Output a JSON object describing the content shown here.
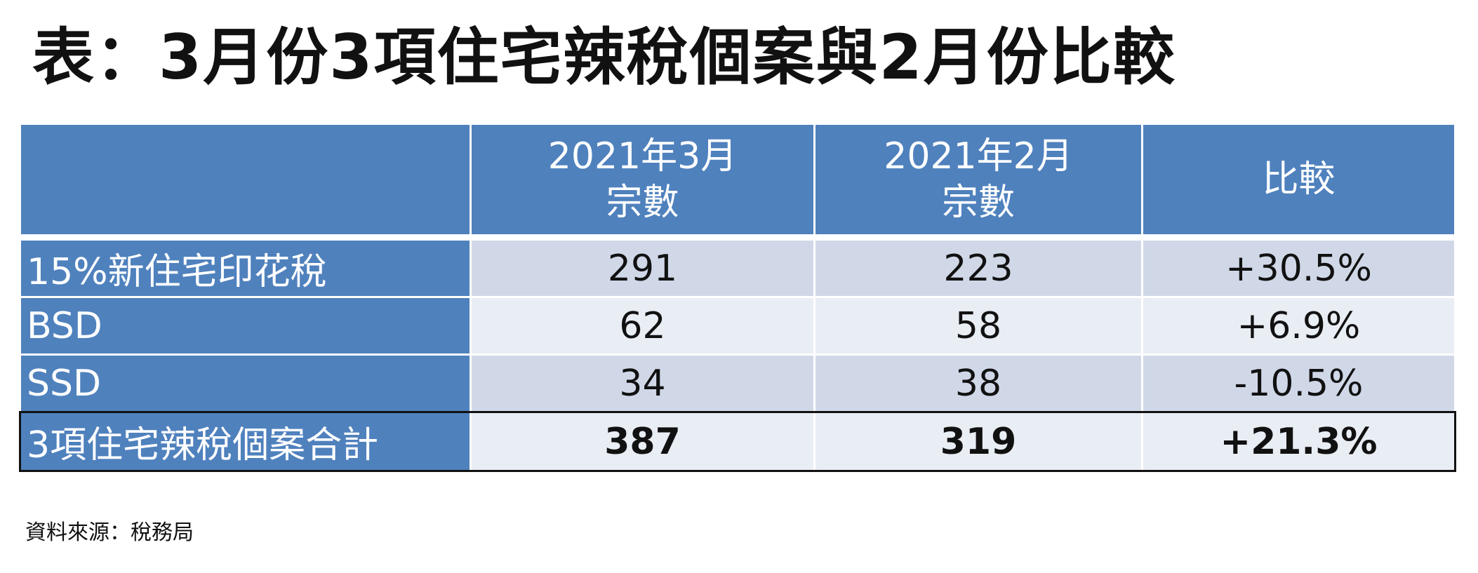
{
  "title": "表：3月份3項住宅辣稅個案與2月份比較",
  "table": {
    "headers": [
      {
        "line1": "",
        "line2": ""
      },
      {
        "line1": "2021年3月",
        "line2": "宗數"
      },
      {
        "line1": "2021年2月",
        "line2": "宗數"
      },
      {
        "line1": "比較",
        "line2": ""
      }
    ],
    "rows": [
      {
        "label": "15%新住宅印花稅",
        "mar": "291",
        "feb": "223",
        "change": "+30.5%"
      },
      {
        "label": "BSD",
        "mar": "62",
        "feb": "58",
        "change": "+6.9%"
      },
      {
        "label": "SSD",
        "mar": "34",
        "feb": "38",
        "change": "-10.5%"
      }
    ],
    "total": {
      "label": "3項住宅辣稅個案合計",
      "mar": "387",
      "feb": "319",
      "change": "+21.3%"
    }
  },
  "source": "資料來源：稅務局",
  "colors": {
    "header_blue": "#4f81bd",
    "row_band_dark": "#d0d8e8",
    "row_band_light": "#e9edf4"
  }
}
